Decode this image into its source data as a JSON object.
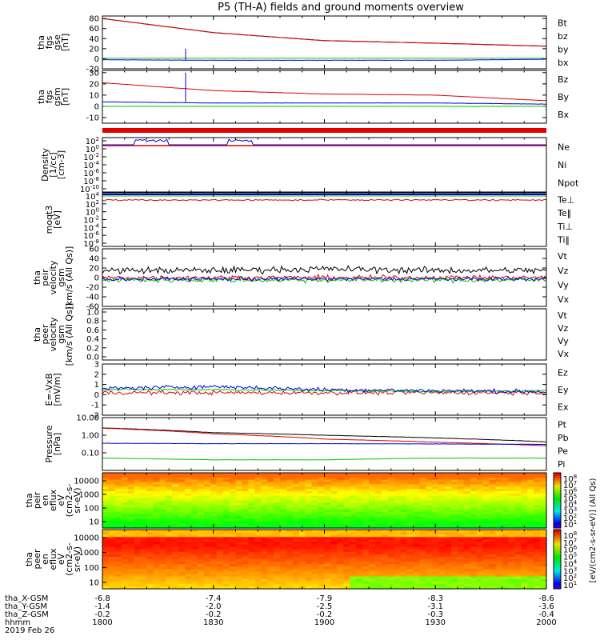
{
  "title": "P5 (TH-A) fields and ground moments overview",
  "colors": {
    "black": "#000000",
    "red": "#e00000",
    "green": "#00c800",
    "blue": "#0000dd"
  },
  "footer": {
    "row_labels": [
      "tha_X-GSM",
      "tha_Y-GSM",
      "tha_Z-GSM",
      "hhmm",
      "2019 Feb 26"
    ],
    "columns": [
      {
        "x": "-6.8",
        "y": "-1.4",
        "z": "-0.2",
        "t": "1800"
      },
      {
        "x": "-7.4",
        "y": "-2.0",
        "z": "-0.2",
        "t": "1830"
      },
      {
        "x": "-7.9",
        "y": "-2.5",
        "z": "-0.2",
        "t": "1900"
      },
      {
        "x": "-8.3",
        "y": "-3.1",
        "z": "-0.3",
        "t": "1930"
      },
      {
        "x": "-8.6",
        "y": "-3.6",
        "z": "-0.4",
        "t": "2000"
      }
    ]
  },
  "colorbar": {
    "label": "[eV/(cm2-s-sr-eV)] (All Qs)",
    "ticks_top": [
      "10^8",
      "10^7",
      "10^6",
      "10^5",
      "10^4",
      "10^3",
      "10^2",
      "10^1"
    ],
    "ticks_bottom": [
      "10^8",
      "10^7",
      "10^6",
      "10^5",
      "10^4",
      "10^3",
      "10^2",
      "10^1"
    ]
  },
  "chart_data": [
    {
      "type": "line",
      "panel": "fgs_gse",
      "ylabel": [
        "tha",
        "fgs",
        "gse",
        "[nT]"
      ],
      "ylim": [
        -20,
        85
      ],
      "yticks": [
        80,
        60,
        40,
        20,
        0,
        -20
      ],
      "x": [
        1800,
        1830,
        1900,
        1930,
        2000
      ],
      "series": [
        {
          "name": "Bt",
          "color": "black",
          "values": [
            80,
            52,
            36,
            31,
            25
          ]
        },
        {
          "name": "bz",
          "color": "red",
          "values": [
            80,
            52,
            36,
            31,
            25
          ]
        },
        {
          "name": "by",
          "color": "green",
          "values": [
            1,
            1,
            1,
            1,
            1
          ]
        },
        {
          "name": "bx",
          "color": "blue",
          "values": [
            -2,
            -3,
            -3,
            -3,
            -1
          ]
        }
      ]
    },
    {
      "type": "line",
      "panel": "fgs_gsm",
      "ylabel": [
        "tha",
        "fgs",
        "gsm",
        "[nT]"
      ],
      "ylim": [
        -15,
        32
      ],
      "yticks": [
        30,
        20,
        10,
        0,
        -10
      ],
      "x": [
        1800,
        1830,
        1900,
        1930,
        2000
      ],
      "series": [
        {
          "name": "Bz",
          "color": "red",
          "values": [
            21,
            14,
            11,
            10,
            5
          ]
        },
        {
          "name": "By",
          "color": "green",
          "values": [
            0,
            0,
            0,
            0,
            0
          ]
        },
        {
          "name": "Bx",
          "color": "blue",
          "values": [
            4,
            3,
            3,
            3,
            2
          ]
        }
      ]
    },
    {
      "type": "line",
      "panel": "density",
      "ylabel": [
        "Density",
        "[1/cc]",
        "[cm-3]"
      ],
      "yticks": [
        "10^2",
        "10^0",
        "10^-2",
        "10^-4",
        "10^-6",
        "10^-8",
        "10^-10"
      ],
      "series": [
        {
          "name": "Ne",
          "color": "red"
        },
        {
          "name": "Ni",
          "color": "black"
        },
        {
          "name": "Npot",
          "color": "blue"
        }
      ]
    },
    {
      "type": "line",
      "panel": "temperature",
      "ylabel": [
        "moqt3",
        "[eV]"
      ],
      "yticks": [
        "10^4",
        "10^2",
        "10^0",
        "10^-2",
        "10^-4",
        "10^-6",
        "10^-8"
      ],
      "series": [
        {
          "name": "Te⊥",
          "color": "red"
        },
        {
          "name": "Te‖",
          "color": "black"
        },
        {
          "name": "Ti⊥",
          "color": "blue"
        },
        {
          "name": "Ti‖",
          "color": "green"
        }
      ]
    },
    {
      "type": "line",
      "panel": "peir_velocity",
      "ylabel": [
        "tha",
        "peir",
        "velocity",
        "gsm",
        "[km/s (All Qs)]"
      ],
      "ylim": [
        -60,
        60
      ],
      "yticks": [
        60,
        40,
        20,
        0,
        -20,
        -40,
        -60
      ],
      "series": [
        {
          "name": "Vt",
          "color": "black",
          "values": [
            15,
            15,
            18,
            15,
            15
          ]
        },
        {
          "name": "Vz",
          "color": "red",
          "values": [
            0,
            0,
            0,
            0,
            0
          ]
        },
        {
          "name": "Vy",
          "color": "green",
          "values": [
            -5,
            -5,
            -5,
            -5,
            -5
          ]
        },
        {
          "name": "Vx",
          "color": "blue",
          "values": [
            -3,
            -3,
            -3,
            -3,
            -3
          ]
        }
      ]
    },
    {
      "type": "line",
      "panel": "peer_velocity",
      "ylabel": [
        "tha",
        "peer",
        "velocity",
        "gsm",
        "[km/s (All Qs)]"
      ],
      "yticks": [
        "1.0",
        "0.8",
        "0.6",
        "0.4",
        "0.2",
        "0.0"
      ],
      "series": [
        {
          "name": "Vt",
          "color": "black"
        },
        {
          "name": "Vz",
          "color": "red"
        },
        {
          "name": "Vy",
          "color": "green"
        },
        {
          "name": "Vx",
          "color": "blue"
        }
      ]
    },
    {
      "type": "line",
      "panel": "efield",
      "ylabel": [
        "E=-VxB",
        "[mV/m]"
      ],
      "ylim": [
        -2,
        3
      ],
      "yticks": [
        3,
        2,
        1,
        0,
        -1,
        -2
      ],
      "series": [
        {
          "name": "Ez",
          "color": "red",
          "values": [
            0.2,
            0.2,
            0.2,
            0.2,
            0.2
          ]
        },
        {
          "name": "Ey",
          "color": "green",
          "values": [
            0.5,
            0.5,
            0.4,
            0.3,
            0.4
          ]
        },
        {
          "name": "Ex",
          "color": "blue",
          "values": [
            0.6,
            0.8,
            0.5,
            0.4,
            0.3
          ]
        }
      ]
    },
    {
      "type": "line",
      "panel": "pressure",
      "ylabel": [
        "Pressure",
        "[nPa]"
      ],
      "ylim": [
        0.01,
        10
      ],
      "yticks": [
        "10.00",
        "1.00",
        "0.10"
      ],
      "series": [
        {
          "name": "Pt",
          "color": "black",
          "values": [
            2.6,
            1.4,
            1.0,
            0.7,
            0.42
          ]
        },
        {
          "name": "Pb",
          "color": "red",
          "values": [
            2.5,
            1.2,
            0.6,
            0.4,
            0.25
          ]
        },
        {
          "name": "Pe",
          "color": "green",
          "values": [
            0.05,
            0.04,
            0.04,
            0.05,
            0.05
          ]
        },
        {
          "name": "Pi",
          "color": "blue",
          "values": [
            0.35,
            0.33,
            0.33,
            0.32,
            0.3
          ]
        }
      ]
    },
    {
      "type": "heatmap",
      "panel": "peir_spec",
      "ylabel": [
        "tha",
        "peir",
        "en",
        "eflux",
        "eV",
        "(cm2-s-",
        "sr-eV)"
      ],
      "yticks": [
        "10000",
        "1000",
        "100",
        "10"
      ]
    },
    {
      "type": "heatmap",
      "panel": "peer_spec",
      "ylabel": [
        "tha",
        "peer",
        "en",
        "eflux",
        "eV",
        "(cm2-s-",
        "sr-eV)"
      ],
      "yticks": [
        "10000",
        "1000",
        "100",
        "10"
      ]
    }
  ]
}
